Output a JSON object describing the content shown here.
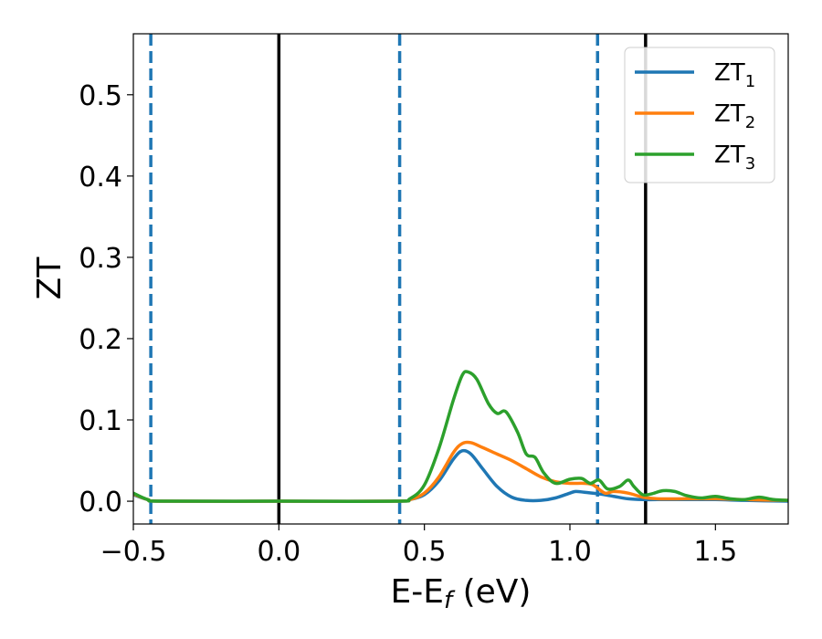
{
  "chart_data": {
    "type": "line",
    "xlabel": {
      "main": "E-E",
      "sub": "f",
      "tail": " (eV)"
    },
    "ylabel": "ZT",
    "xlim": [
      -0.5,
      1.75
    ],
    "ylim": [
      -0.028,
      0.575
    ],
    "xticks": [
      {
        "value": -0.5,
        "label": "−0.5"
      },
      {
        "value": 0.0,
        "label": "0.0"
      },
      {
        "value": 0.5,
        "label": "0.5"
      },
      {
        "value": 1.0,
        "label": "1.0"
      },
      {
        "value": 1.5,
        "label": "1.5"
      }
    ],
    "yticks": [
      {
        "value": 0.0,
        "label": "0.0"
      },
      {
        "value": 0.1,
        "label": "0.1"
      },
      {
        "value": 0.2,
        "label": "0.2"
      },
      {
        "value": 0.3,
        "label": "0.3"
      },
      {
        "value": 0.4,
        "label": "0.4"
      },
      {
        "value": 0.5,
        "label": "0.5"
      }
    ],
    "grid": false,
    "legend_position": "top-right",
    "vlines": [
      {
        "x": -0.44,
        "style": "dashed",
        "color": "#1f77b4"
      },
      {
        "x": 0.0,
        "style": "solid",
        "color": "#000000"
      },
      {
        "x": 0.415,
        "style": "dashed",
        "color": "#1f77b4"
      },
      {
        "x": 1.095,
        "style": "dashed",
        "color": "#1f77b4"
      },
      {
        "x": 1.26,
        "style": "solid",
        "color": "#000000"
      }
    ],
    "series": [
      {
        "name": "ZT",
        "name_sub": "1",
        "color": "#1f77b4",
        "x": [
          -0.5,
          -0.45,
          -0.4,
          0.0,
          0.4,
          0.45,
          0.5,
          0.55,
          0.6,
          0.63,
          0.66,
          0.7,
          0.75,
          0.8,
          0.85,
          0.9,
          0.95,
          1.0,
          1.02,
          1.05,
          1.1,
          1.15,
          1.2,
          1.25,
          1.3,
          1.4,
          1.5,
          1.6,
          1.75
        ],
        "y": [
          0.008,
          0.002,
          0.0,
          0.0,
          0.0,
          0.002,
          0.008,
          0.025,
          0.052,
          0.062,
          0.058,
          0.04,
          0.018,
          0.005,
          0.001,
          0.001,
          0.004,
          0.01,
          0.012,
          0.011,
          0.009,
          0.006,
          0.003,
          0.002,
          0.002,
          0.002,
          0.002,
          0.001,
          0.0
        ]
      },
      {
        "name": "ZT",
        "name_sub": "2",
        "color": "#ff7f0e",
        "x": [
          -0.5,
          -0.45,
          -0.4,
          0.0,
          0.4,
          0.45,
          0.5,
          0.55,
          0.6,
          0.63,
          0.66,
          0.7,
          0.75,
          0.8,
          0.85,
          0.9,
          0.95,
          1.0,
          1.05,
          1.08,
          1.12,
          1.15,
          1.2,
          1.25,
          1.3,
          1.4,
          1.5,
          1.6,
          1.75
        ],
        "y": [
          0.009,
          0.002,
          0.0,
          0.0,
          0.0,
          0.002,
          0.01,
          0.03,
          0.06,
          0.071,
          0.072,
          0.066,
          0.058,
          0.05,
          0.04,
          0.03,
          0.024,
          0.022,
          0.022,
          0.02,
          0.01,
          0.012,
          0.01,
          0.005,
          0.003,
          0.003,
          0.003,
          0.002,
          0.001
        ]
      },
      {
        "name": "ZT",
        "name_sub": "3",
        "color": "#2ca02c",
        "x": [
          -0.5,
          -0.45,
          -0.4,
          0.0,
          0.4,
          0.45,
          0.5,
          0.55,
          0.6,
          0.63,
          0.65,
          0.68,
          0.72,
          0.75,
          0.78,
          0.82,
          0.85,
          0.88,
          0.91,
          0.95,
          1.0,
          1.04,
          1.07,
          1.1,
          1.13,
          1.17,
          1.2,
          1.22,
          1.25,
          1.28,
          1.32,
          1.36,
          1.4,
          1.45,
          1.5,
          1.55,
          1.6,
          1.65,
          1.7,
          1.75
        ],
        "y": [
          0.01,
          0.002,
          0.0,
          0.0,
          0.0,
          0.003,
          0.02,
          0.065,
          0.125,
          0.155,
          0.159,
          0.15,
          0.12,
          0.108,
          0.11,
          0.085,
          0.058,
          0.054,
          0.035,
          0.022,
          0.027,
          0.028,
          0.022,
          0.026,
          0.015,
          0.018,
          0.026,
          0.018,
          0.008,
          0.009,
          0.013,
          0.012,
          0.007,
          0.004,
          0.006,
          0.003,
          0.002,
          0.005,
          0.002,
          0.001
        ]
      }
    ]
  }
}
